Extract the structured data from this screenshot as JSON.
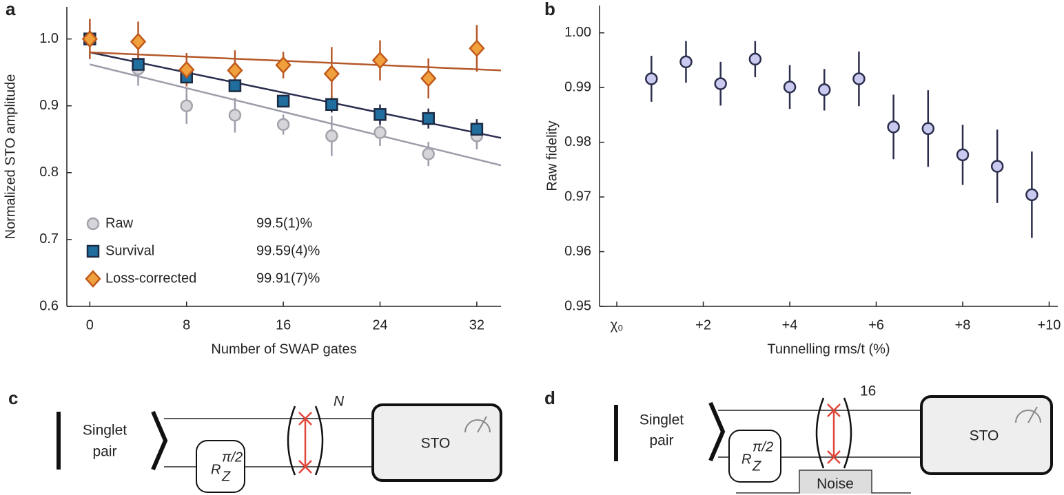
{
  "chart_data": [
    {
      "type": "scatter",
      "panel": "a",
      "xlabel": "Number of SWAP gates",
      "ylabel": "Normalized STO amplitude",
      "xlim": [
        -1.9,
        34
      ],
      "ylim": [
        0.6,
        1.048
      ],
      "xticks": [
        0,
        8,
        16,
        24,
        32
      ],
      "yticks": [
        0.6,
        0.7,
        0.8,
        0.9,
        {
          "value": 1,
          "label": "1.0"
        }
      ],
      "x": [
        0,
        4,
        8,
        12,
        16,
        20,
        24,
        28,
        32
      ],
      "series": [
        {
          "name": "Raw",
          "fidelity": "99.5(1)%",
          "marker": "circle",
          "color": "#d5d5da",
          "edge": "#a3a3ab",
          "line_color": "#9c9cab",
          "values": [
            1.0,
            0.955,
            0.9,
            0.886,
            0.872,
            0.855,
            0.86,
            0.828,
            0.855
          ],
          "errors": [
            0.03,
            0.025,
            0.027,
            0.026,
            0.015,
            0.03,
            0.02,
            0.018,
            0.02
          ],
          "fit": {
            "x": [
              0,
              34
            ],
            "values": [
              0.962,
              0.811
            ]
          }
        },
        {
          "name": "Survival",
          "fidelity": "99.59(4)%",
          "marker": "square",
          "color": "#1f6e9e",
          "edge": "#1c2a44",
          "line_color": "#2a2d4e",
          "values": [
            1.0,
            0.962,
            0.943,
            0.93,
            0.907,
            0.902,
            0.887,
            0.881,
            0.865
          ],
          "errors": [
            0.01,
            0.008,
            0.01,
            0.008,
            0.008,
            0.012,
            0.015,
            0.015,
            0.015
          ],
          "fit": {
            "x": [
              0,
              34
            ],
            "values": [
              0.98,
              0.852
            ]
          }
        },
        {
          "name": "Loss-corrected",
          "fidelity": "99.91(7)%",
          "marker": "diamond",
          "color": "#f0a03c",
          "edge": "#c05a1a",
          "line_color": "#b5582a",
          "values": [
            1.0,
            0.996,
            0.954,
            0.953,
            0.961,
            0.948,
            0.968,
            0.941,
            0.986
          ],
          "errors": [
            0.03,
            0.03,
            0.025,
            0.03,
            0.02,
            0.04,
            0.03,
            0.03,
            0.035
          ],
          "fit": {
            "x": [
              0,
              34
            ],
            "values": [
              0.98,
              0.953
            ]
          }
        }
      ]
    },
    {
      "type": "scatter",
      "panel": "b",
      "xlabel": "Tunnelling rms/t (%)",
      "ylabel": "Raw fidelity",
      "xlim": [
        -0.4,
        10.2
      ],
      "ylim": [
        0.95,
        1.005
      ],
      "xticks": [
        {
          "value": 0,
          "label": "χ₀"
        },
        {
          "value": 2,
          "label": "+2"
        },
        {
          "value": 4,
          "label": "+4"
        },
        {
          "value": 6,
          "label": "+6"
        },
        {
          "value": 8,
          "label": "+8"
        },
        {
          "value": 10,
          "label": "+10"
        }
      ],
      "yticks": [
        0.95,
        0.96,
        0.97,
        0.98,
        0.99,
        {
          "value": 1,
          "label": "1.00"
        }
      ],
      "x": [
        0.8,
        1.6,
        2.4,
        3.2,
        4.0,
        4.8,
        5.6,
        6.4,
        7.2,
        8.0,
        8.8,
        9.6
      ],
      "series": [
        {
          "marker": "circle",
          "color": "#cacaf0",
          "edge": "#2b2e4c",
          "line_color": "#2b2e4c",
          "values": [
            0.9916,
            0.9947,
            0.9907,
            0.9952,
            0.9901,
            0.9896,
            0.9916,
            0.9828,
            0.9825,
            0.9777,
            0.9756,
            0.9704
          ],
          "errors": [
            0.0042,
            0.0038,
            0.004,
            0.0033,
            0.004,
            0.0038,
            0.005,
            0.0059,
            0.007,
            0.0055,
            0.0067,
            0.0079
          ]
        }
      ]
    }
  ],
  "diagrams": [
    {
      "panel": "c",
      "input": [
        "Singlet",
        "pair"
      ],
      "gate": {
        "symbol": "R",
        "subscript": "Z",
        "superscript": "π/2"
      },
      "repeat": "N",
      "readout": "STO"
    },
    {
      "panel": "d",
      "input": [
        "Singlet",
        "pair"
      ],
      "gate": {
        "symbol": "R",
        "subscript": "Z",
        "superscript": "π/2"
      },
      "repeat": "16",
      "readout": "STO",
      "noise": "Noise"
    }
  ]
}
